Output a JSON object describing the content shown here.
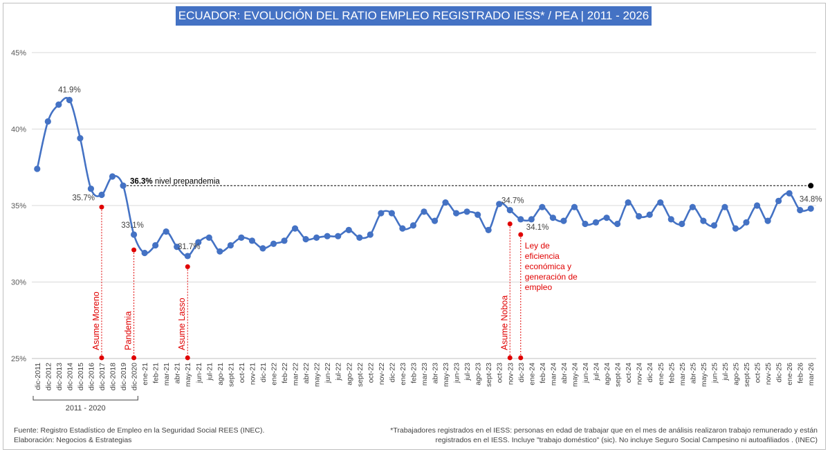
{
  "chart_data": {
    "type": "line",
    "title": "ECUADOR: EVOLUCIÓN DEL RATIO EMPLEO REGISTRADO IESS* / PEA | 2011 - 2026",
    "xlabel": "",
    "ylabel": "",
    "ylim": [
      25,
      45
    ],
    "yticks": [
      "25%",
      "30%",
      "35%",
      "40%",
      "45%"
    ],
    "grid": true,
    "line_color": "#4472c4",
    "categories": [
      "dic-2011",
      "dic-2012",
      "dic-2013",
      "dic-2014",
      "dic-2015",
      "dic-2016",
      "dic-2017",
      "dic-2018",
      "dic-2019",
      "dic-2020",
      "ene-21",
      "feb-21",
      "mar-21",
      "abr-21",
      "may-21",
      "jun-21",
      "jul-21",
      "ago-21",
      "sept-21",
      "oct-21",
      "nov-21",
      "dic-21",
      "ene-22",
      "feb-22",
      "mar-22",
      "abr-22",
      "may-22",
      "jun-22",
      "jul-22",
      "ago-22",
      "sept-22",
      "oct-22",
      "nov-22",
      "dic-22",
      "ene-23",
      "feb-23",
      "mar-23",
      "abr-23",
      "may-23",
      "jun-23",
      "jul-23",
      "ago-23",
      "sept-23",
      "oct-23",
      "nov-23",
      "dic-23",
      "ene-24",
      "feb-24",
      "mar-24",
      "abr-24",
      "may-24",
      "jun-24",
      "jul-24",
      "ago-24",
      "sept-24",
      "oct-24",
      "nov-24",
      "dic-24",
      "ene-25",
      "feb-25",
      "mar-25",
      "abr-25",
      "may-25",
      "jun-25",
      "jul-25",
      "ago-25",
      "sept-25",
      "oct-25",
      "nov-25",
      "dic-25",
      "ene-26",
      "feb-26",
      "mar-26"
    ],
    "series": [
      {
        "values": [
          37.4,
          40.5,
          41.6,
          41.9,
          39.4,
          36.1,
          35.7,
          36.9,
          36.3,
          33.1,
          31.9,
          32.4,
          33.3,
          32.3,
          31.7,
          32.6,
          32.9,
          32.0,
          32.4,
          32.9,
          32.7,
          32.2,
          32.5,
          32.7,
          33.5,
          32.8,
          32.9,
          33.0,
          33.0,
          33.4,
          32.9,
          33.1,
          34.5,
          34.5,
          33.5,
          33.7,
          34.6,
          34.0,
          35.2,
          34.5,
          34.6,
          34.4,
          33.4,
          35.1,
          34.7,
          34.1,
          34.1,
          34.9,
          34.2,
          34.0,
          34.9,
          33.8,
          33.9,
          34.2,
          33.8,
          35.2,
          34.3,
          34.4,
          35.2,
          34.1,
          33.8,
          34.9,
          34.0,
          33.7,
          34.9,
          33.5,
          33.9,
          35.0,
          34.0,
          35.3,
          35.8,
          34.7,
          34.8
        ]
      }
    ],
    "data_labels": [
      {
        "index": 3,
        "text": "41.9%"
      },
      {
        "index": 6,
        "text": "35.7%"
      },
      {
        "index": 9,
        "text": "33.1%"
      },
      {
        "index": 14,
        "text": "31.7%"
      },
      {
        "index": 44,
        "text": "34.7%"
      },
      {
        "index": 45,
        "text": "34.1%"
      },
      {
        "index": 72,
        "text": "34.8%"
      }
    ],
    "reference_line": {
      "value": 36.3,
      "start_index": 8,
      "end_index": 72,
      "value_text": "36.3%",
      "text": "nivel prepandemia",
      "color": "#000000"
    },
    "events": [
      {
        "index": 6,
        "text": [
          "Asume Moreno"
        ],
        "marker_value": 34.9,
        "vertical": true
      },
      {
        "index": 9,
        "text": [
          "Pandemia"
        ],
        "marker_value": 32.1,
        "vertical": true
      },
      {
        "index": 14,
        "text": [
          "Asume Lasso"
        ],
        "marker_value": 31.0,
        "vertical": true
      },
      {
        "index": 44,
        "text": [
          "Asume Noboa"
        ],
        "marker_value": 33.8,
        "vertical": true
      },
      {
        "index": 45,
        "text": [
          "Ley de",
          "eficiencia",
          "económica y",
          "generación de",
          "empleo"
        ],
        "marker_value": 33.1,
        "vertical": false
      }
    ],
    "event_color": "#e00000",
    "group_label": {
      "text": "2011 - 2020",
      "start_index": 0,
      "end_index": 9
    }
  },
  "footer": {
    "left": [
      "Fuente: Registro Estadístico de Empleo en la Seguridad Social REES (INEC).",
      "Elaboración: Negocios & Estrategias"
    ],
    "right": [
      "*Trabajadores registrados en el IESS: personas en edad de trabajar que en el mes de análisis realizaron trabajo remunerado y están",
      "registrados en el IESS. Incluye \"trabajo doméstico\" (sic). No incluye Seguro Social Campesino ni autoafiliados . (INEC)"
    ]
  }
}
